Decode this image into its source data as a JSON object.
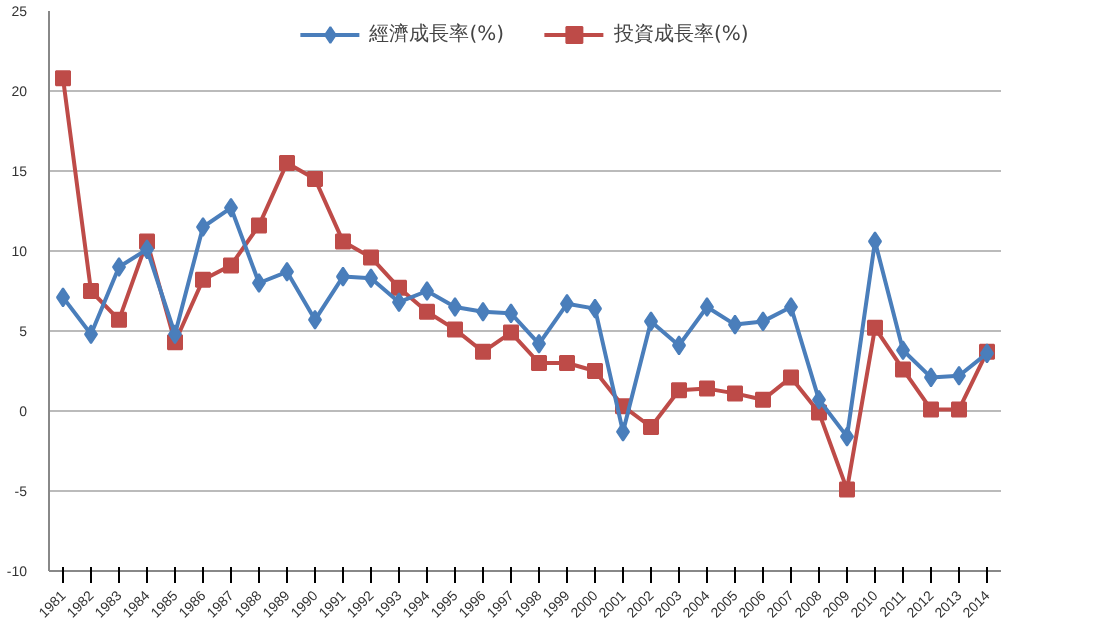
{
  "chart_data": {
    "type": "line",
    "categories": [
      "1981",
      "1982",
      "1983",
      "1984",
      "1985",
      "1986",
      "1987",
      "1988",
      "1989",
      "1990",
      "1991",
      "1992",
      "1993",
      "1994",
      "1995",
      "1996",
      "1997",
      "1998",
      "1999",
      "2000",
      "2001",
      "2002",
      "2003",
      "2004",
      "2005",
      "2006",
      "2007",
      "2008",
      "2009",
      "2010",
      "2011",
      "2012",
      "2013",
      "2014"
    ],
    "series": [
      {
        "name": "經濟成長率(%)",
        "color": "#4a7ebb",
        "marker": "diamond",
        "values": [
          7.1,
          4.8,
          9.0,
          10.1,
          4.8,
          11.5,
          12.7,
          8.0,
          8.7,
          5.7,
          8.4,
          8.3,
          6.8,
          7.5,
          6.5,
          6.2,
          6.1,
          4.2,
          6.7,
          6.4,
          -1.3,
          5.6,
          4.1,
          6.5,
          5.4,
          5.6,
          6.5,
          0.7,
          -1.6,
          10.6,
          3.8,
          2.1,
          2.2,
          3.6
        ]
      },
      {
        "name": "投資成長率(%)",
        "color": "#be4b48",
        "marker": "square",
        "values": [
          20.8,
          7.5,
          5.7,
          10.6,
          4.3,
          8.2,
          9.1,
          11.6,
          15.5,
          14.5,
          10.6,
          9.6,
          7.7,
          6.2,
          5.1,
          3.7,
          4.9,
          3.0,
          3.0,
          2.5,
          0.3,
          -1.0,
          1.3,
          1.4,
          1.1,
          0.7,
          2.1,
          -0.1,
          -4.9,
          5.2,
          2.6,
          0.1,
          0.1,
          3.7
        ]
      }
    ],
    "ylim": [
      -10,
      25
    ],
    "yticks": [
      -10,
      -5,
      0,
      5,
      10,
      15,
      20,
      25
    ],
    "grid": "y",
    "legend": "top",
    "line_style": "solid"
  }
}
